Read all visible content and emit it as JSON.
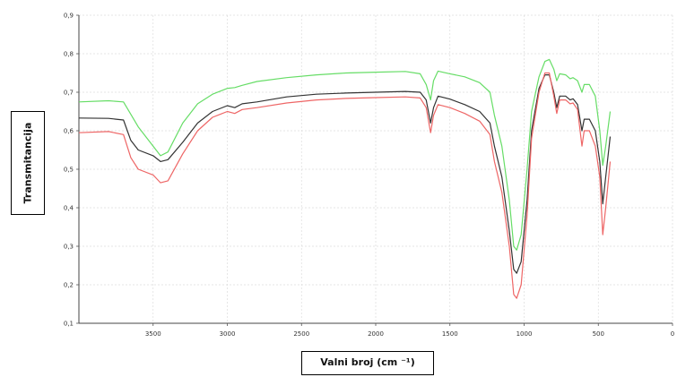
{
  "chart_data": {
    "type": "line",
    "title": "",
    "xlabel": "Valni broj (cm ⁻¹)",
    "ylabel": "Transmitancija",
    "x_reversed": true,
    "xlim": [
      4000,
      0
    ],
    "ylim": [
      0.1,
      0.9
    ],
    "x_ticks": [
      {
        "value": 3500,
        "label": "3500"
      },
      {
        "value": 3000,
        "label": "3000"
      },
      {
        "value": 2500,
        "label": "2500"
      },
      {
        "value": 2000,
        "label": "2000"
      },
      {
        "value": 1500,
        "label": "1500"
      },
      {
        "value": 1000,
        "label": "1000"
      },
      {
        "value": 500,
        "label": "500"
      },
      {
        "value": 0,
        "label": "0"
      }
    ],
    "y_ticks": [
      {
        "value": 0.1,
        "label": "0,1"
      },
      {
        "value": 0.2,
        "label": "0,2"
      },
      {
        "value": 0.3,
        "label": "0,3"
      },
      {
        "value": 0.4,
        "label": "0,4"
      },
      {
        "value": 0.5,
        "label": "0,5"
      },
      {
        "value": 0.6,
        "label": "0,6"
      },
      {
        "value": 0.7,
        "label": "0,7"
      },
      {
        "value": 0.8,
        "label": "0,8"
      },
      {
        "value": 0.9,
        "label": "0,9"
      }
    ],
    "grid": true,
    "legend": "none",
    "series": [
      {
        "color": "#66dd66",
        "points": [
          [
            4000,
            0.675
          ],
          [
            3800,
            0.678
          ],
          [
            3700,
            0.675
          ],
          [
            3600,
            0.61
          ],
          [
            3500,
            0.56
          ],
          [
            3450,
            0.535
          ],
          [
            3400,
            0.545
          ],
          [
            3300,
            0.62
          ],
          [
            3200,
            0.67
          ],
          [
            3100,
            0.695
          ],
          [
            3000,
            0.71
          ],
          [
            2950,
            0.712
          ],
          [
            2900,
            0.718
          ],
          [
            2800,
            0.728
          ],
          [
            2600,
            0.738
          ],
          [
            2400,
            0.745
          ],
          [
            2200,
            0.75
          ],
          [
            2000,
            0.752
          ],
          [
            1800,
            0.754
          ],
          [
            1700,
            0.748
          ],
          [
            1660,
            0.72
          ],
          [
            1630,
            0.68
          ],
          [
            1610,
            0.73
          ],
          [
            1580,
            0.755
          ],
          [
            1500,
            0.748
          ],
          [
            1400,
            0.74
          ],
          [
            1300,
            0.725
          ],
          [
            1230,
            0.7
          ],
          [
            1200,
            0.64
          ],
          [
            1150,
            0.56
          ],
          [
            1100,
            0.42
          ],
          [
            1070,
            0.3
          ],
          [
            1050,
            0.29
          ],
          [
            1020,
            0.33
          ],
          [
            980,
            0.5
          ],
          [
            950,
            0.65
          ],
          [
            900,
            0.74
          ],
          [
            860,
            0.78
          ],
          [
            830,
            0.785
          ],
          [
            800,
            0.76
          ],
          [
            780,
            0.73
          ],
          [
            760,
            0.748
          ],
          [
            720,
            0.745
          ],
          [
            690,
            0.735
          ],
          [
            670,
            0.738
          ],
          [
            640,
            0.73
          ],
          [
            610,
            0.7
          ],
          [
            595,
            0.72
          ],
          [
            560,
            0.72
          ],
          [
            520,
            0.69
          ],
          [
            490,
            0.6
          ],
          [
            470,
            0.51
          ],
          [
            450,
            0.56
          ],
          [
            420,
            0.65
          ]
        ]
      },
      {
        "color": "#333333",
        "points": [
          [
            4000,
            0.633
          ],
          [
            3800,
            0.632
          ],
          [
            3700,
            0.628
          ],
          [
            3650,
            0.575
          ],
          [
            3600,
            0.55
          ],
          [
            3500,
            0.535
          ],
          [
            3450,
            0.52
          ],
          [
            3400,
            0.525
          ],
          [
            3300,
            0.57
          ],
          [
            3200,
            0.62
          ],
          [
            3100,
            0.65
          ],
          [
            3000,
            0.665
          ],
          [
            2950,
            0.66
          ],
          [
            2900,
            0.67
          ],
          [
            2800,
            0.675
          ],
          [
            2600,
            0.688
          ],
          [
            2400,
            0.695
          ],
          [
            2200,
            0.698
          ],
          [
            2000,
            0.7
          ],
          [
            1800,
            0.702
          ],
          [
            1700,
            0.7
          ],
          [
            1660,
            0.68
          ],
          [
            1630,
            0.62
          ],
          [
            1610,
            0.66
          ],
          [
            1580,
            0.69
          ],
          [
            1500,
            0.682
          ],
          [
            1400,
            0.668
          ],
          [
            1300,
            0.65
          ],
          [
            1230,
            0.62
          ],
          [
            1200,
            0.56
          ],
          [
            1150,
            0.48
          ],
          [
            1100,
            0.34
          ],
          [
            1070,
            0.24
          ],
          [
            1050,
            0.23
          ],
          [
            1020,
            0.26
          ],
          [
            980,
            0.42
          ],
          [
            950,
            0.6
          ],
          [
            900,
            0.71
          ],
          [
            860,
            0.745
          ],
          [
            830,
            0.745
          ],
          [
            800,
            0.7
          ],
          [
            780,
            0.66
          ],
          [
            760,
            0.69
          ],
          [
            720,
            0.69
          ],
          [
            690,
            0.68
          ],
          [
            670,
            0.683
          ],
          [
            640,
            0.668
          ],
          [
            610,
            0.6
          ],
          [
            595,
            0.63
          ],
          [
            560,
            0.63
          ],
          [
            520,
            0.6
          ],
          [
            490,
            0.52
          ],
          [
            470,
            0.41
          ],
          [
            450,
            0.48
          ],
          [
            420,
            0.585
          ]
        ]
      },
      {
        "color": "#ee6666",
        "points": [
          [
            4000,
            0.595
          ],
          [
            3800,
            0.598
          ],
          [
            3700,
            0.59
          ],
          [
            3650,
            0.53
          ],
          [
            3600,
            0.5
          ],
          [
            3500,
            0.485
          ],
          [
            3450,
            0.465
          ],
          [
            3400,
            0.47
          ],
          [
            3300,
            0.54
          ],
          [
            3200,
            0.6
          ],
          [
            3100,
            0.635
          ],
          [
            3000,
            0.65
          ],
          [
            2950,
            0.645
          ],
          [
            2900,
            0.655
          ],
          [
            2800,
            0.66
          ],
          [
            2600,
            0.672
          ],
          [
            2400,
            0.68
          ],
          [
            2200,
            0.684
          ],
          [
            2000,
            0.686
          ],
          [
            1800,
            0.688
          ],
          [
            1700,
            0.685
          ],
          [
            1660,
            0.66
          ],
          [
            1630,
            0.595
          ],
          [
            1610,
            0.64
          ],
          [
            1580,
            0.668
          ],
          [
            1500,
            0.66
          ],
          [
            1400,
            0.645
          ],
          [
            1300,
            0.625
          ],
          [
            1230,
            0.59
          ],
          [
            1200,
            0.52
          ],
          [
            1150,
            0.44
          ],
          [
            1100,
            0.3
          ],
          [
            1070,
            0.175
          ],
          [
            1050,
            0.165
          ],
          [
            1020,
            0.2
          ],
          [
            980,
            0.38
          ],
          [
            950,
            0.58
          ],
          [
            900,
            0.7
          ],
          [
            860,
            0.75
          ],
          [
            830,
            0.75
          ],
          [
            800,
            0.69
          ],
          [
            780,
            0.645
          ],
          [
            760,
            0.68
          ],
          [
            720,
            0.68
          ],
          [
            690,
            0.67
          ],
          [
            670,
            0.672
          ],
          [
            640,
            0.655
          ],
          [
            610,
            0.56
          ],
          [
            595,
            0.6
          ],
          [
            560,
            0.6
          ],
          [
            520,
            0.56
          ],
          [
            490,
            0.48
          ],
          [
            470,
            0.33
          ],
          [
            450,
            0.4
          ],
          [
            420,
            0.52
          ]
        ]
      }
    ]
  }
}
